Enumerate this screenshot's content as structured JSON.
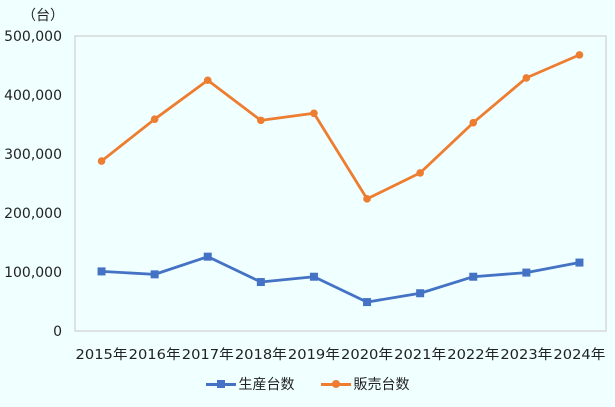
{
  "chart_data": {
    "type": "line",
    "title": "",
    "unit_label": "（台）",
    "xlabel": "",
    "ylabel": "台",
    "categories": [
      "2015年",
      "2016年",
      "2017年",
      "2018年",
      "2019年",
      "2020年",
      "2021年",
      "2022年",
      "2023年",
      "2024年"
    ],
    "series": [
      {
        "name": "生産台数",
        "color": "#4472C4",
        "marker": "square",
        "values": [
          101000,
          96000,
          126000,
          83000,
          92000,
          49000,
          64000,
          92000,
          99000,
          116000
        ]
      },
      {
        "name": "販売台数",
        "color": "#ED7D31",
        "marker": "circle",
        "values": [
          288000,
          359000,
          425000,
          357000,
          369000,
          224000,
          268000,
          353000,
          429000,
          468000
        ]
      }
    ],
    "ylim": [
      0,
      500000
    ],
    "yticks": [
      0,
      100000,
      200000,
      300000,
      400000,
      500000
    ],
    "ytick_labels": [
      "0",
      "100,000",
      "200,000",
      "300,000",
      "400,000",
      "500,000"
    ],
    "grid": false,
    "legend_position": "bottom"
  },
  "legend": {
    "items": [
      {
        "label": "生産台数",
        "color": "#4472C4",
        "marker": "square"
      },
      {
        "label": "販売台数",
        "color": "#ED7D31",
        "marker": "circle"
      }
    ]
  }
}
